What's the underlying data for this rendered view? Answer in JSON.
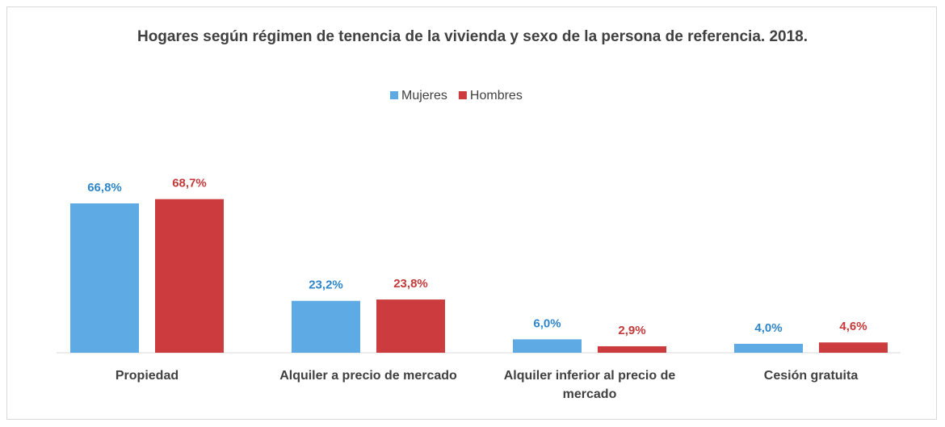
{
  "chart_data": {
    "type": "bar",
    "title": "Hogares según régimen de tenencia de la vivienda y sexo de la persona de referencia. 2018.",
    "categories": [
      "Propiedad",
      "Alquiler a precio de mercado",
      "Alquiler inferior al precio de mercado",
      "Cesión gratuita"
    ],
    "series": [
      {
        "name": "Mujeres",
        "color": "#5eaae4",
        "values": [
          66.8,
          23.2,
          6.0,
          4.0
        ],
        "value_labels": [
          "66,8%",
          "23,2%",
          "6,0%",
          "4,0%"
        ]
      },
      {
        "name": "Hombres",
        "color": "#cc3b3d",
        "values": [
          68.7,
          23.8,
          2.9,
          4.6
        ],
        "value_labels": [
          "68,7%",
          "23,8%",
          "2,9%",
          "4,6%"
        ]
      }
    ],
    "legend": "top"
  }
}
